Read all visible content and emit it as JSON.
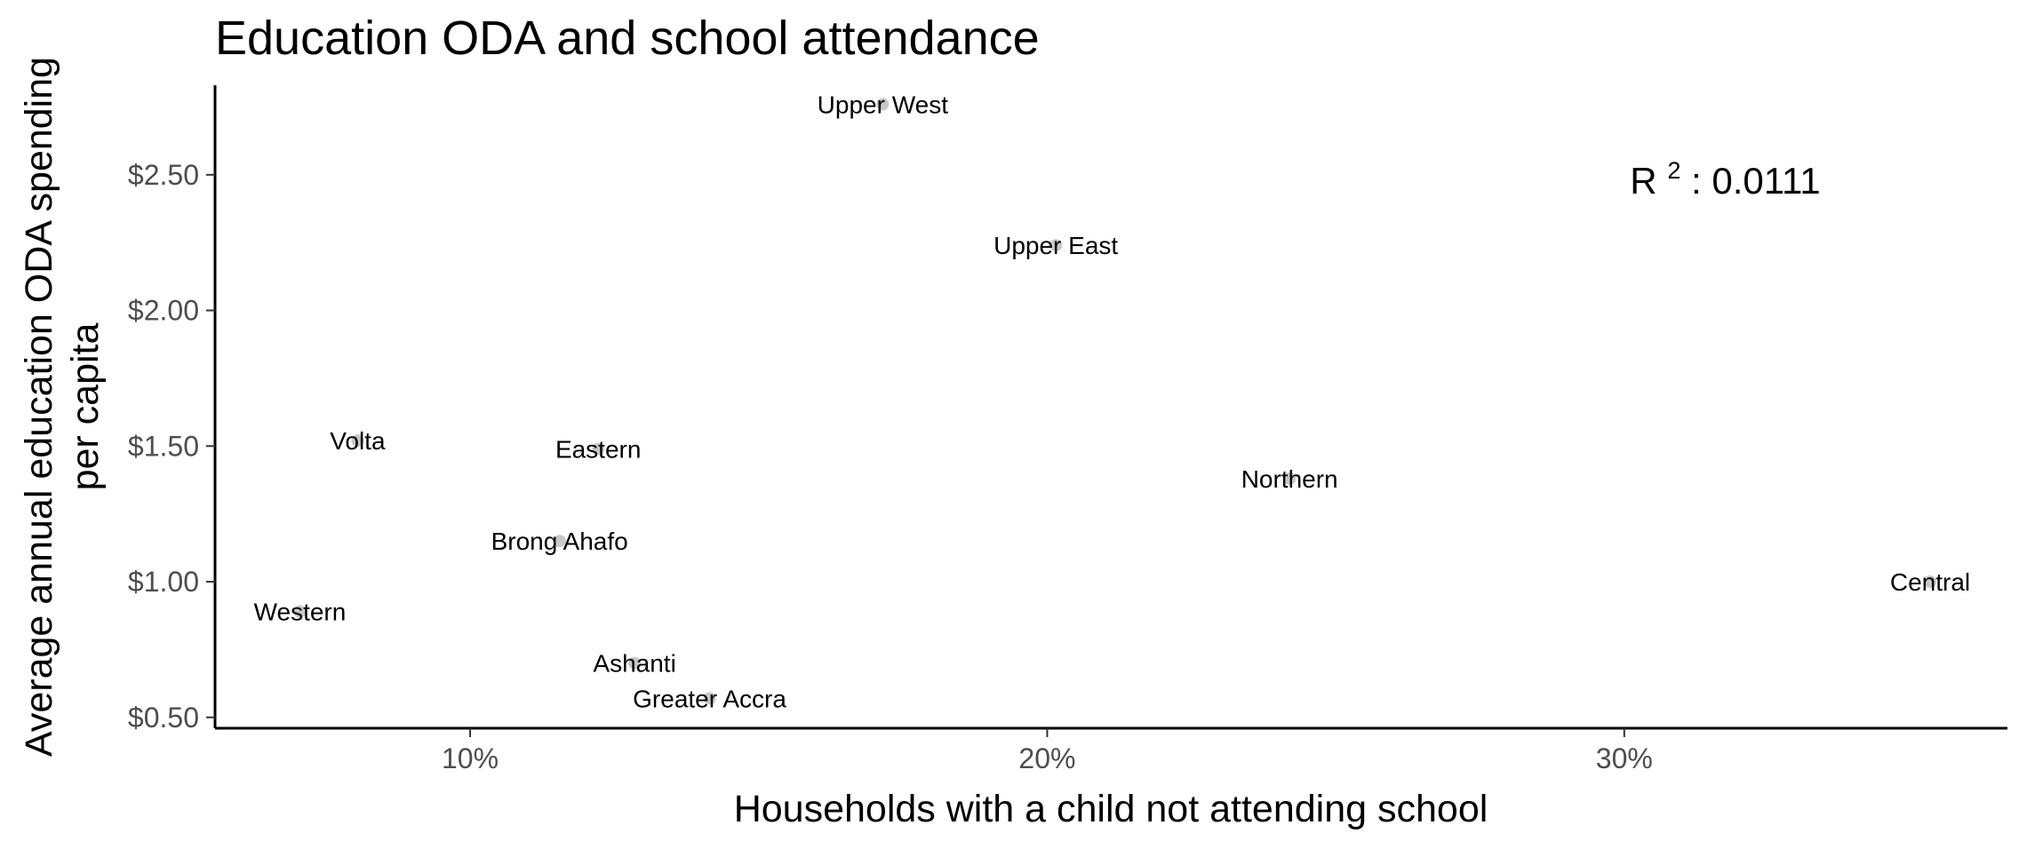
{
  "chart_data": {
    "type": "scatter",
    "title": "Education ODA and school attendance",
    "xlabel": "Households with a child not attending school",
    "ylabel_lines": [
      "Average annual education ODA spending",
      "per capita"
    ],
    "x_ticks": [
      {
        "value": 0.1,
        "label": "10%"
      },
      {
        "value": 0.2,
        "label": "20%"
      },
      {
        "value": 0.3,
        "label": "30%"
      }
    ],
    "y_ticks": [
      {
        "value": 0.5,
        "label": "$0.50"
      },
      {
        "value": 1.0,
        "label": "$1.00"
      },
      {
        "value": 1.5,
        "label": "$1.50"
      },
      {
        "value": 2.0,
        "label": "$2.00"
      },
      {
        "value": 2.5,
        "label": "$2.50"
      }
    ],
    "xlim": [
      0.0558,
      0.3664
    ],
    "ylim": [
      0.46,
      2.83
    ],
    "grid": false,
    "point_color": "#c8c8c8",
    "points": [
      {
        "label": "Upper West",
        "x": 0.1715,
        "y": 2.76
      },
      {
        "label": "Upper East",
        "x": 0.2015,
        "y": 2.24
      },
      {
        "label": "Volta",
        "x": 0.0805,
        "y": 1.52
      },
      {
        "label": "Eastern",
        "x": 0.1222,
        "y": 1.49
      },
      {
        "label": "Northern",
        "x": 0.242,
        "y": 1.38
      },
      {
        "label": "Brong Ahafo",
        "x": 0.1155,
        "y": 1.15
      },
      {
        "label": "Central",
        "x": 0.353,
        "y": 1.0
      },
      {
        "label": "Western",
        "x": 0.0705,
        "y": 0.89
      },
      {
        "label": "Ashanti",
        "x": 0.1285,
        "y": 0.7
      },
      {
        "label": "Greater Accra",
        "x": 0.1415,
        "y": 0.57
      }
    ],
    "annotation": {
      "label": "R",
      "superscript": "2",
      "text": ": 0.0111",
      "x": 0.301,
      "y": 2.43
    }
  }
}
